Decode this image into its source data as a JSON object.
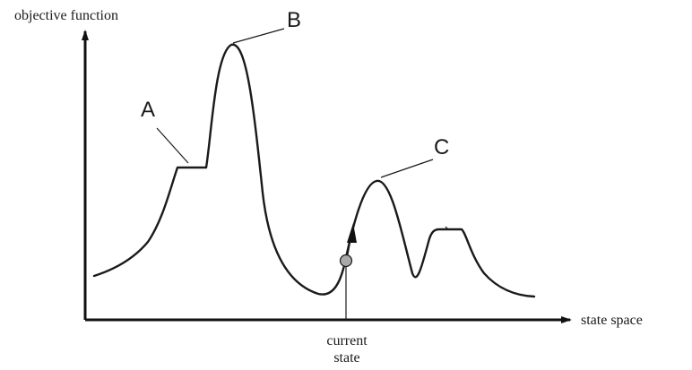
{
  "axes": {
    "y_label": "objective function",
    "x_label": "state space"
  },
  "annotations": {
    "a": "A",
    "b": "B",
    "c": "C",
    "current_state_line1": "current",
    "current_state_line2": "state"
  },
  "colors": {
    "curve": "#1a1a1a",
    "current_state_marker": "#a9a9a9"
  }
}
